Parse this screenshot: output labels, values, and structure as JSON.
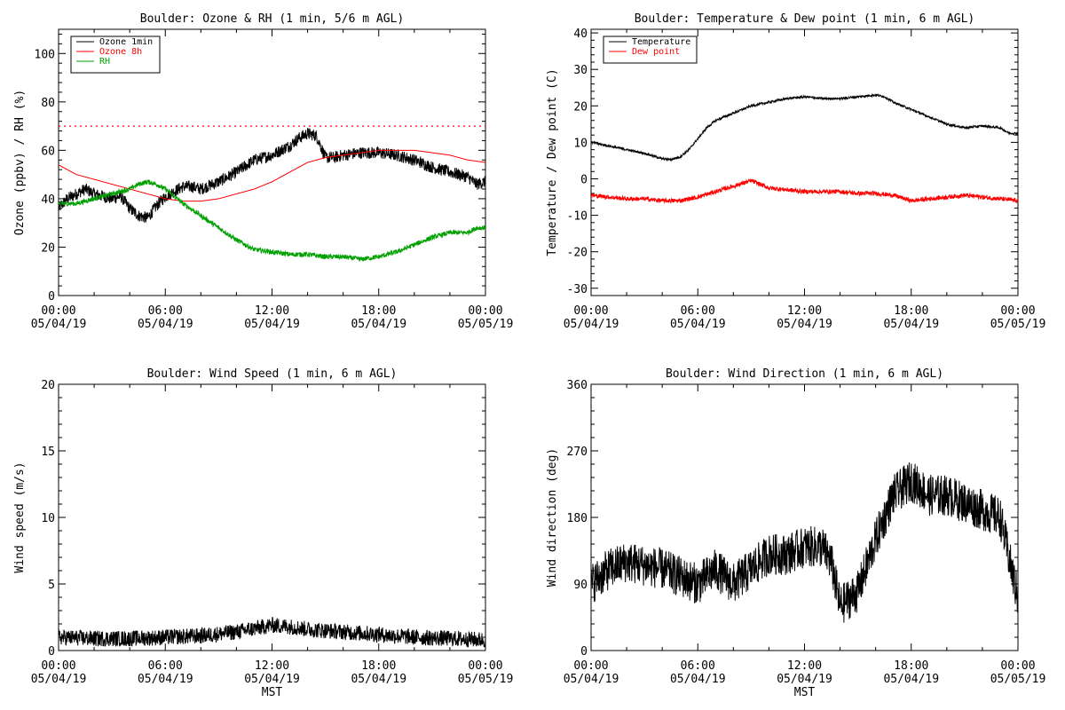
{
  "chart_data": [
    {
      "type": "line",
      "title": "Boulder: Ozone & RH (1 min, 5/6 m AGL)",
      "xlabel": "",
      "ylabel": "Ozone (ppbv) / RH (%)",
      "xlim": [
        0,
        24
      ],
      "ylim": [
        0,
        110
      ],
      "yticks": [
        "0",
        "20",
        "40",
        "60",
        "80",
        "100"
      ],
      "yticks_values": [
        0,
        20,
        40,
        60,
        80,
        100
      ],
      "x_ticks": [
        {
          "h": 0,
          "time": "00:00",
          "date": "05/04/19"
        },
        {
          "h": 6,
          "time": "06:00",
          "date": "05/04/19"
        },
        {
          "h": 12,
          "time": "12:00",
          "date": "05/04/19"
        },
        {
          "h": 18,
          "time": "18:00",
          "date": "05/04/19"
        },
        {
          "h": 24,
          "time": "00:00",
          "date": "05/05/19"
        }
      ],
      "legend": "top-left",
      "reference_line": {
        "y": 70,
        "color": "#ff0000",
        "style": "dotted"
      },
      "series": [
        {
          "name": "Ozone 1min",
          "color": "#000000",
          "noise": 2.5,
          "x": [
            0,
            0.5,
            1,
            1.5,
            2,
            2.5,
            3,
            3.5,
            4,
            4.5,
            5,
            5.5,
            6,
            6.5,
            7,
            7.5,
            8,
            9,
            10,
            11,
            12,
            12.5,
            13,
            13.5,
            14,
            14.5,
            15,
            15.5,
            16,
            17,
            18,
            19,
            20,
            21,
            22,
            23,
            23.5,
            24
          ],
          "y": [
            36,
            40,
            42,
            44,
            42,
            41,
            40,
            41,
            36,
            33,
            32,
            37,
            41,
            43,
            45,
            45,
            44,
            47,
            51,
            56,
            58,
            60,
            62,
            65,
            67,
            66,
            57,
            57,
            58,
            59,
            59,
            58,
            56,
            53,
            51,
            49,
            46,
            47
          ]
        },
        {
          "name": "Ozone 8h",
          "color": "#ff0000",
          "noise": 0,
          "x": [
            0,
            1,
            2,
            3,
            4,
            5,
            6,
            7,
            8,
            9,
            10,
            11,
            12,
            13,
            14,
            15,
            16,
            17,
            18,
            19,
            20,
            21,
            22,
            23,
            24
          ],
          "y": [
            54,
            50,
            48,
            46,
            44,
            42,
            40,
            39,
            39,
            40,
            42,
            44,
            47,
            51,
            55,
            57,
            58,
            59,
            60,
            60,
            60,
            59,
            58,
            56,
            55
          ]
        },
        {
          "name": "RH",
          "color": "#00a000",
          "noise": 1.0,
          "x": [
            0,
            1,
            2,
            3,
            4,
            4.5,
            5,
            5.5,
            6,
            7,
            8,
            9,
            10,
            11,
            12,
            13,
            14,
            15,
            16,
            17,
            18,
            19,
            20,
            21,
            22,
            23,
            23.5,
            24
          ],
          "y": [
            38,
            38,
            40,
            42,
            44,
            46,
            47,
            46,
            44,
            38,
            33,
            28,
            23,
            19,
            18,
            17,
            17,
            16,
            16,
            15,
            16,
            18,
            21,
            24,
            26,
            26,
            28,
            28
          ]
        }
      ]
    },
    {
      "type": "line",
      "title": "Boulder: Temperature & Dew point (1 min, 6 m AGL)",
      "xlabel": "",
      "ylabel": "Temperature / Dew point (C)",
      "xlim": [
        0,
        24
      ],
      "ylim": [
        -32,
        41
      ],
      "yticks": [
        "-30",
        "-20",
        "-10",
        "0",
        "10",
        "20",
        "30",
        "40"
      ],
      "yticks_values": [
        -30,
        -20,
        -10,
        0,
        10,
        20,
        30,
        40
      ],
      "x_ticks": [
        {
          "h": 0,
          "time": "00:00",
          "date": "05/04/19"
        },
        {
          "h": 6,
          "time": "06:00",
          "date": "05/04/19"
        },
        {
          "h": 12,
          "time": "12:00",
          "date": "05/04/19"
        },
        {
          "h": 18,
          "time": "18:00",
          "date": "05/04/19"
        },
        {
          "h": 24,
          "time": "00:00",
          "date": "05/05/19"
        }
      ],
      "legend": "top-left",
      "series": [
        {
          "name": "Temperature",
          "color": "#000000",
          "noise": 0.3,
          "x": [
            0,
            1,
            2,
            3,
            4,
            4.5,
            5,
            5.5,
            6,
            6.5,
            7,
            7.5,
            8,
            8.5,
            9,
            10,
            11,
            12,
            13,
            14,
            15,
            16,
            16.5,
            17,
            18,
            19,
            20,
            21,
            22,
            23,
            23.5,
            24
          ],
          "y": [
            10,
            9,
            8,
            7,
            5.5,
            5.3,
            6,
            8,
            11,
            14,
            16,
            17,
            18,
            19,
            20,
            21,
            22,
            22.5,
            22,
            22,
            22.5,
            23,
            22.5,
            21,
            19,
            17,
            15,
            14,
            14.5,
            14,
            12.5,
            12.5
          ]
        },
        {
          "name": "Dew point",
          "color": "#ff0000",
          "noise": 0.6,
          "x": [
            0,
            1,
            2,
            3,
            4,
            5,
            6,
            7,
            8,
            9,
            10,
            11,
            12,
            13,
            14,
            15,
            16,
            17,
            18,
            19,
            20,
            21,
            22,
            23,
            24
          ],
          "y": [
            -4.5,
            -5,
            -5.5,
            -5.5,
            -6,
            -6,
            -5,
            -3.5,
            -2,
            -0.5,
            -2.5,
            -3,
            -3.5,
            -3.5,
            -3.5,
            -4,
            -4,
            -4.5,
            -6,
            -5.5,
            -5,
            -4.5,
            -5,
            -5.5,
            -6
          ]
        }
      ]
    },
    {
      "type": "line",
      "title": "Boulder: Wind Speed (1 min, 6 m AGL)",
      "xlabel": "MST",
      "ylabel": "Wind speed (m/s)",
      "xlim": [
        0,
        24
      ],
      "ylim": [
        0,
        20
      ],
      "yticks": [
        "0",
        "5",
        "10",
        "15",
        "20"
      ],
      "yticks_values": [
        0,
        5,
        10,
        15,
        20
      ],
      "x_ticks": [
        {
          "h": 0,
          "time": "00:00",
          "date": "05/04/19"
        },
        {
          "h": 6,
          "time": "06:00",
          "date": "05/04/19"
        },
        {
          "h": 12,
          "time": "12:00",
          "date": "05/04/19"
        },
        {
          "h": 18,
          "time": "18:00",
          "date": "05/04/19"
        },
        {
          "h": 24,
          "time": "00:00",
          "date": "05/05/19"
        }
      ],
      "series": [
        {
          "name": "",
          "color": "#000000",
          "noise": 0.6,
          "min": 0,
          "x": [
            0,
            2,
            4,
            6,
            8,
            10,
            12,
            13,
            14,
            16,
            18,
            20,
            22,
            24
          ],
          "y": [
            1.0,
            0.9,
            0.9,
            1.0,
            1.1,
            1.4,
            1.9,
            1.8,
            1.6,
            1.4,
            1.2,
            1.0,
            0.9,
            0.8
          ]
        }
      ]
    },
    {
      "type": "line",
      "title": "Boulder: Wind Direction (1 min, 6 m AGL)",
      "xlabel": "MST",
      "ylabel": "Wind direction (deg)",
      "xlim": [
        0,
        24
      ],
      "ylim": [
        0,
        360
      ],
      "yticks": [
        "0",
        "90",
        "180",
        "270",
        "360"
      ],
      "yticks_values": [
        0,
        90,
        180,
        270,
        360
      ],
      "x_ticks": [
        {
          "h": 0,
          "time": "00:00",
          "date": "05/04/19"
        },
        {
          "h": 6,
          "time": "06:00",
          "date": "05/04/19"
        },
        {
          "h": 12,
          "time": "12:00",
          "date": "05/04/19"
        },
        {
          "h": 18,
          "time": "18:00",
          "date": "05/04/19"
        },
        {
          "h": 24,
          "time": "00:00",
          "date": "05/05/19"
        }
      ],
      "series": [
        {
          "name": "",
          "color": "#000000",
          "noise": 28,
          "min": 0,
          "max": 360,
          "x": [
            0,
            1,
            2,
            3,
            4,
            5,
            6,
            7,
            8,
            9,
            10,
            11,
            12,
            13,
            13.5,
            14,
            15,
            16,
            17,
            18,
            19,
            20,
            21,
            22,
            23,
            24
          ],
          "y": [
            90,
            110,
            120,
            115,
            110,
            100,
            90,
            110,
            90,
            110,
            130,
            130,
            140,
            140,
            120,
            60,
            80,
            150,
            210,
            230,
            210,
            210,
            200,
            190,
            180,
            70
          ]
        }
      ]
    }
  ]
}
